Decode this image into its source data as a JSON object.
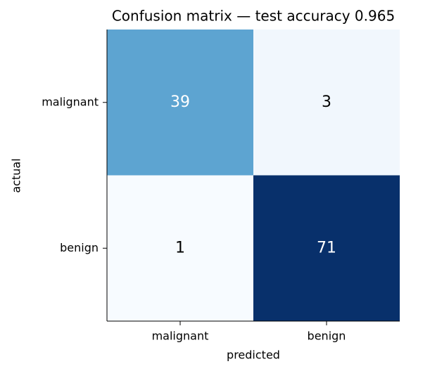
{
  "chart_data": {
    "type": "heatmap",
    "title": "Confusion matrix — test accuracy 0.965",
    "x_label": "predicted",
    "y_label": "actual",
    "x_categories": [
      "malignant",
      "benign"
    ],
    "y_categories": [
      "malignant",
      "benign"
    ],
    "values": [
      [
        39,
        3
      ],
      [
        1,
        71
      ]
    ],
    "colormap": "Blues"
  }
}
